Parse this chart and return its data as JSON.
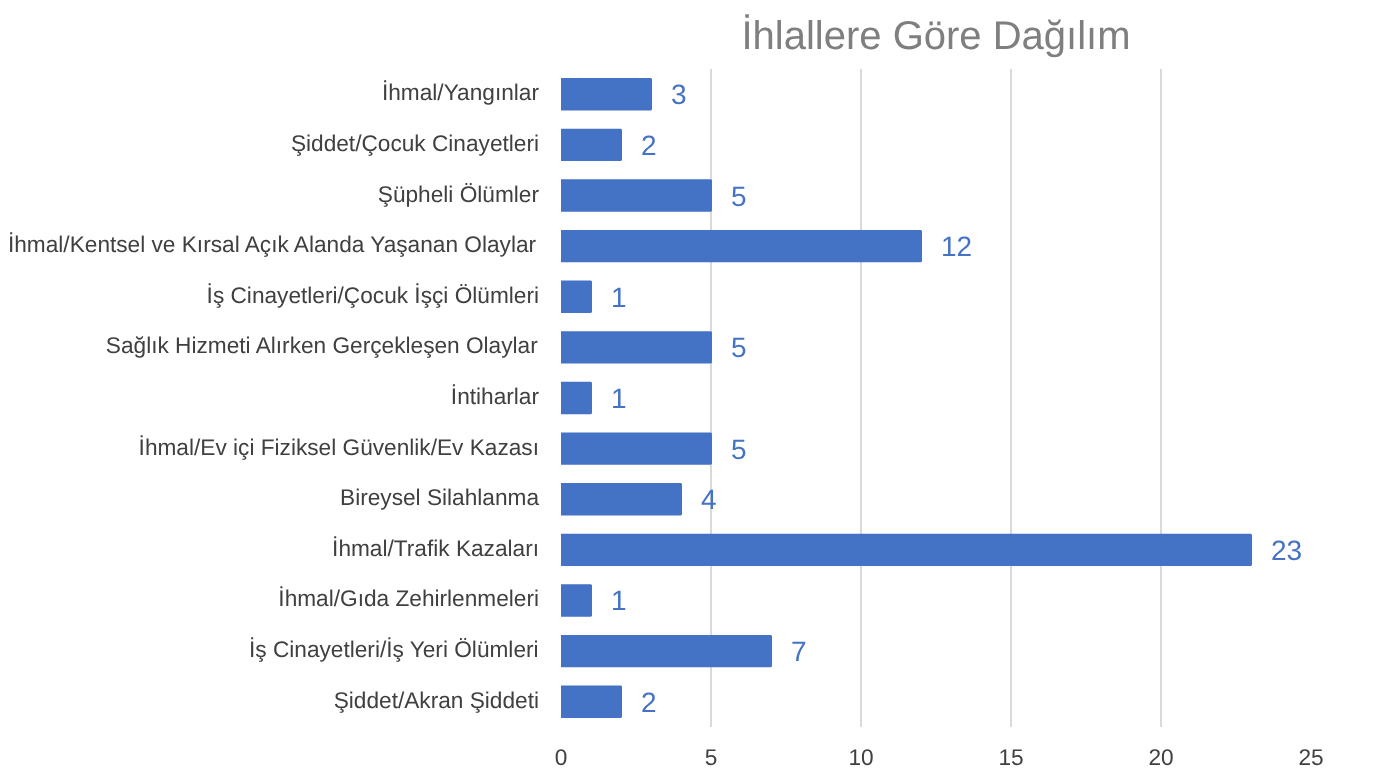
{
  "chart_data": {
    "type": "bar",
    "orientation": "horizontal",
    "title": "İhlallere Göre Dağılım",
    "categories": [
      "İhmal/Yangınlar",
      "Şiddet/Çocuk Cinayetleri",
      "Şüpheli Ölümler",
      "İhmal/Kentsel ve Kırsal Açık Alanda Yaşanan Olaylar",
      "İş Cinayetleri/Çocuk İşçi Ölümleri",
      "Sağlık Hizmeti Alırken Gerçekleşen Olaylar",
      "İntiharlar",
      "İhmal/Ev içi Fiziksel Güvenlik/Ev Kazası",
      "Bireysel Silahlanma",
      "İhmal/Trafik Kazaları",
      "İhmal/Gıda Zehirlenmeleri",
      "İş Cinayetleri/İş Yeri Ölümleri",
      "Şiddet/Akran Şiddeti"
    ],
    "values": [
      3,
      2,
      5,
      12,
      1,
      5,
      1,
      5,
      4,
      23,
      1,
      7,
      2
    ],
    "color": "#4472c4",
    "xlim": [
      0,
      25
    ],
    "xticks": [
      0,
      5,
      10,
      15,
      20,
      25
    ],
    "grid": "x",
    "data_labels": true
  }
}
